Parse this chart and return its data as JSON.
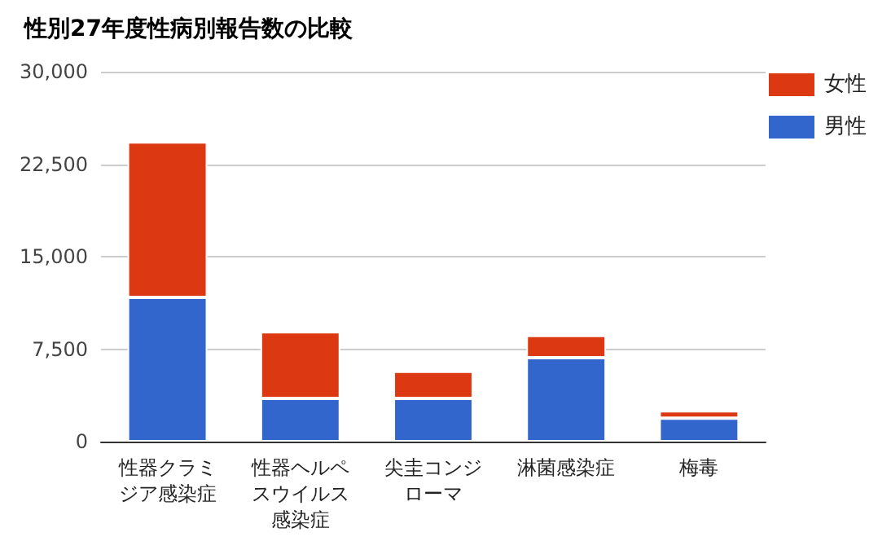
{
  "chart_data": {
    "type": "bar",
    "title": "性別27年度性病別報告数の比較",
    "stacked": true,
    "categories": [
      "性器クラミジア感染症",
      "性器ヘルペスウイルス感染症",
      "尖圭コンジローマ",
      "淋菌感染症",
      "梅毒"
    ],
    "series": [
      {
        "name": "男性",
        "color": "#3366cc",
        "values": [
          11700,
          3500,
          3500,
          6800,
          1900
        ]
      },
      {
        "name": "女性",
        "color": "#dc3912",
        "values": [
          12600,
          5400,
          2200,
          1800,
          600
        ]
      }
    ],
    "ylim": [
      0,
      30000
    ],
    "yticks": [
      0,
      {
        "value": 7500,
        "label": "7,500"
      },
      {
        "value": 15000,
        "label": "15,000"
      },
      {
        "value": 22500,
        "label": "22,500"
      },
      {
        "value": 30000,
        "label": "30,000"
      }
    ],
    "grid": "y",
    "legend": "top right"
  }
}
